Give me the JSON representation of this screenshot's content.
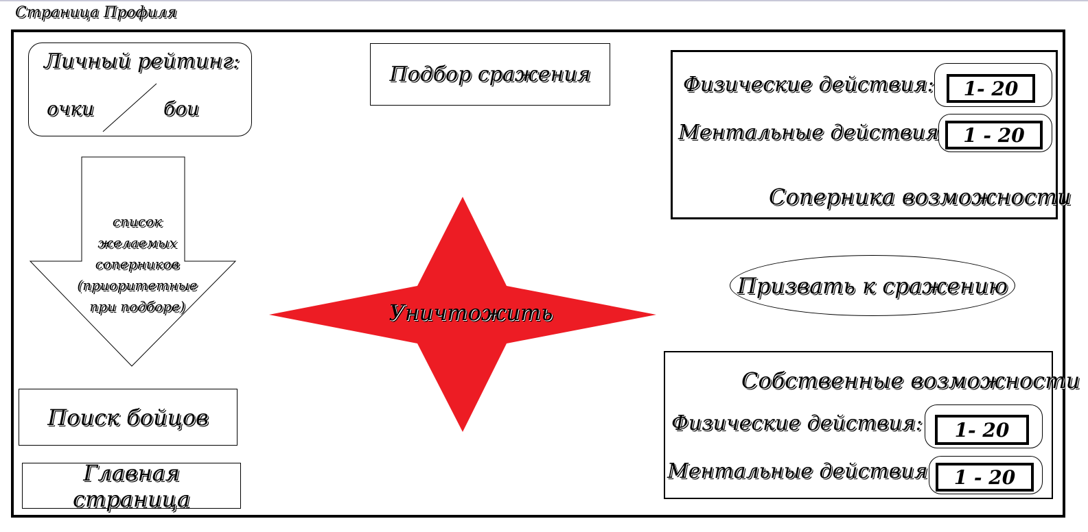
{
  "page": {
    "title": "Страница Профиля"
  },
  "rating": {
    "title": "Личный рейтинг:",
    "points_label": "очки",
    "battles_label": "бои"
  },
  "matchmaking": {
    "label": "Подбор сражения"
  },
  "wishlist": {
    "lines": [
      "список",
      "желаемых",
      "соперников",
      "(приоритетные",
      "при подборе)"
    ]
  },
  "destroy": {
    "label": "Уничтожить",
    "color": "#ed1c24"
  },
  "opponent": {
    "physical_label": "Физические действия:",
    "physical_value": "1- 20",
    "mental_label": "Ментальные действия:",
    "mental_value": "1 - 20",
    "caption": "Соперника возможности"
  },
  "challenge": {
    "label": "Призвать к сражению"
  },
  "own": {
    "caption": "Собственные возможности",
    "physical_label": "Физические действия:",
    "physical_value": "1- 20",
    "mental_label": "Ментальные действия:",
    "mental_value": "1 - 20"
  },
  "nav": {
    "search_label": "Поиск бойцов",
    "home_label": "Главная страница"
  }
}
